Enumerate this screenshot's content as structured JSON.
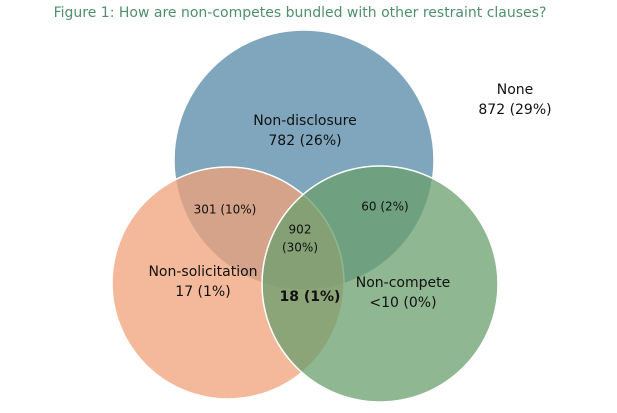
{
  "title": "Figure 1: How are non-competes bundled with other restraint clauses?",
  "sets": [
    {
      "label": "Non-disclosure",
      "count": "782 (26%)"
    },
    {
      "label": "Non-solicitation",
      "count": "17 (1%)"
    },
    {
      "label": "Non-compete",
      "count": "<10 (0%)"
    }
  ],
  "outside": {
    "label": "None",
    "count": "872 (29%)"
  },
  "overlaps": {
    "disclosure_solicitation": "301 (10%)",
    "disclosure_compete": "60 (2%)",
    "all_three": [
      "902",
      "(30%)"
    ],
    "solicitation_compete": "18 (1%)"
  }
}
